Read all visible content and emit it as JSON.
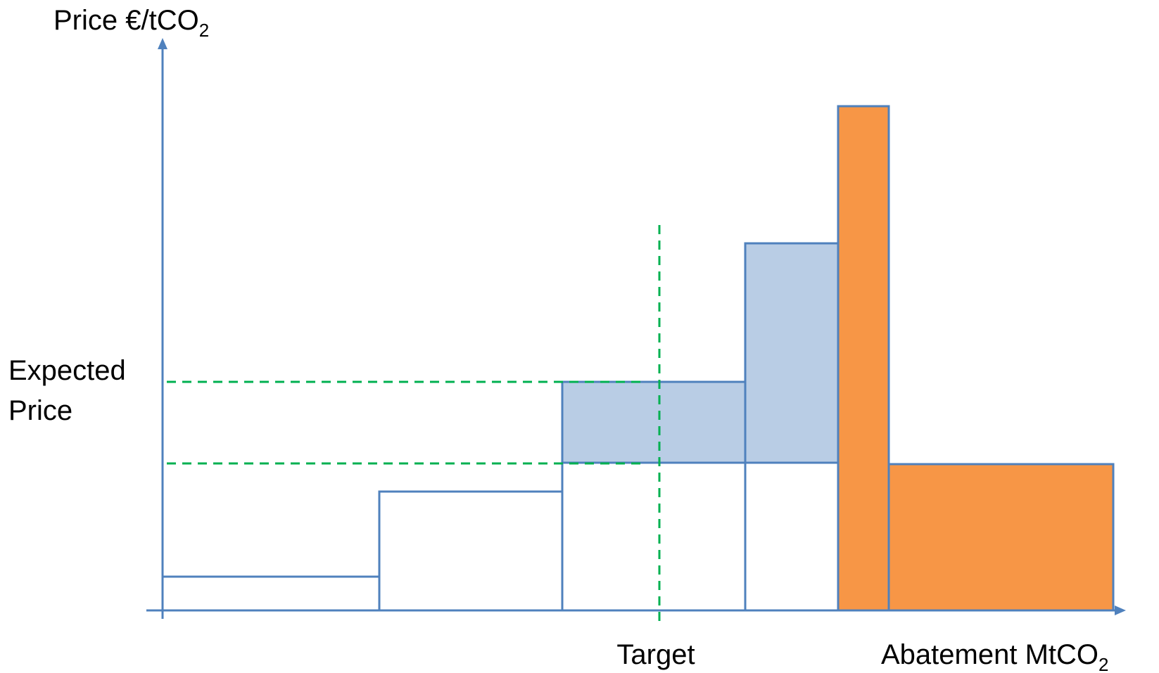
{
  "colors": {
    "axis": "#4F81BD",
    "outline": "#4F81BD",
    "blue_fill": "#B9CDE5",
    "orange_fill": "#F79646",
    "guide": "#00B050",
    "background": "#FFFFFF",
    "text": "#000000"
  },
  "labels": {
    "y_axis_main": "Price €/tCO",
    "y_axis_sub": "2",
    "x_axis_main": "Abatement MtCO",
    "x_axis_sub": "2",
    "expected_line1": "Expected",
    "expected_line2": "Price",
    "target": "Target"
  }
}
